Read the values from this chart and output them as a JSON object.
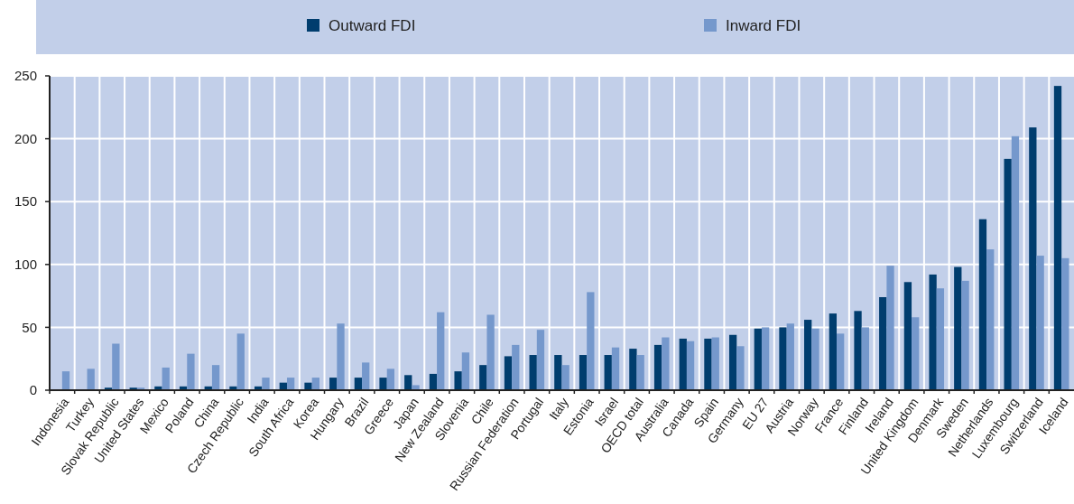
{
  "chart_data": {
    "type": "bar",
    "categories": [
      "Indonesia",
      "Turkey",
      "Slovak Republic",
      "United States",
      "Mexico",
      "Poland",
      "China",
      "Czech Republic",
      "India",
      "South Africa",
      "Korea",
      "Hungary",
      "Brazil",
      "Greece",
      "Japan",
      "New Zealand",
      "Slovenia",
      "Chile",
      "Russian Federation",
      "Portugal",
      "Italy",
      "Estonia",
      "Israel",
      "OECD total",
      "Australia",
      "Canada",
      "Spain",
      "Germany",
      "EU 27",
      "Austria",
      "Norway",
      "France",
      "Finland",
      "Ireland",
      "United Kingdom",
      "Denmark",
      "Sweden",
      "Netherlands",
      "Luxembourg",
      "Switzerland",
      "Iceland"
    ],
    "series": [
      {
        "name": "Outward FDI",
        "color": "#003d6e",
        "values": [
          0,
          0,
          2,
          2,
          3,
          3,
          3,
          3,
          3,
          6,
          6,
          10,
          10,
          10,
          12,
          13,
          15,
          20,
          27,
          28,
          28,
          28,
          28,
          33,
          36,
          41,
          41,
          44,
          49,
          50,
          56,
          61,
          63,
          74,
          86,
          92,
          98,
          136,
          184,
          209,
          242
        ]
      },
      {
        "name": "Inward FDI",
        "color": "#7598cc",
        "values": [
          15,
          17,
          37,
          2,
          18,
          29,
          20,
          45,
          10,
          10,
          10,
          53,
          22,
          17,
          4,
          62,
          30,
          60,
          36,
          48,
          20,
          78,
          34,
          28,
          42,
          39,
          42,
          35,
          50,
          53,
          49,
          45,
          50,
          99,
          58,
          81,
          87,
          112,
          202,
          107,
          105
        ]
      }
    ],
    "ylim": [
      0,
      250
    ],
    "yticks": [
      0,
      50,
      100,
      150,
      200,
      250
    ],
    "grid": true,
    "legend": "top"
  }
}
